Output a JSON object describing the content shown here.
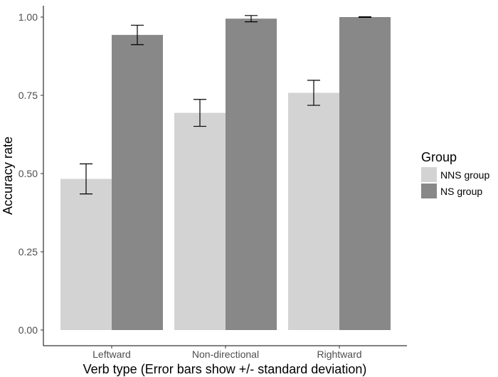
{
  "chart_data": {
    "type": "bar",
    "title": "",
    "xlabel": "Verb type (Error bars show +/- standard deviation)",
    "ylabel": "Accuracy rate",
    "categories": [
      "Leftward",
      "Non-directional",
      "Rightward"
    ],
    "ylim": [
      0,
      1.0
    ],
    "yticks": [
      0.0,
      0.25,
      0.5,
      0.75,
      1.0
    ],
    "ytick_labels": [
      "0.00",
      "0.25",
      "0.50",
      "0.75",
      "1.00"
    ],
    "grid": false,
    "legend": {
      "title": "Group",
      "placement": "right"
    },
    "series": [
      {
        "name": "NNS group",
        "color": "#d3d3d3",
        "values": [
          0.483,
          0.694,
          0.758
        ],
        "error": [
          0.048,
          0.043,
          0.04
        ]
      },
      {
        "name": "NS group",
        "color": "#888888",
        "values": [
          0.943,
          0.995,
          1.0
        ],
        "error": [
          0.031,
          0.01,
          0.001
        ]
      }
    ]
  }
}
